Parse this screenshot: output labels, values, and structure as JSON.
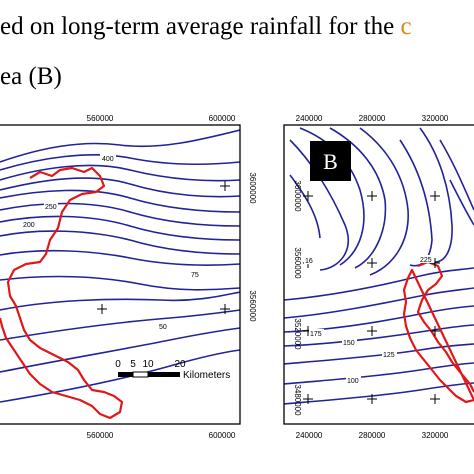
{
  "caption": {
    "line1": "ed on long-term average rainfall for the",
    "line1_cut": "c",
    "line2": "ea (B)"
  },
  "map_a": {
    "top_ticks": [
      "560000",
      "600000"
    ],
    "bottom_ticks": [
      "560000",
      "600000"
    ],
    "right_ticks": [
      "3600000",
      "3560000"
    ],
    "contour_labels": [
      "400",
      "250",
      "200",
      "75",
      "50"
    ],
    "scale": {
      "ticks": [
        "0",
        "5",
        "10",
        "20"
      ],
      "unit": "Kilometers"
    }
  },
  "map_b": {
    "panel_label": "B",
    "top_ticks": [
      "240000",
      "280000",
      "320000"
    ],
    "bottom_ticks": [
      "240000",
      "280000",
      "320000"
    ],
    "left_ticks": [
      "3600000",
      "3560000",
      "3520000",
      "3480000"
    ],
    "contour_labels": [
      "175",
      "150",
      "125",
      "100",
      "225",
      "16"
    ]
  },
  "colors": {
    "contour": "#22229a",
    "boundary": "#e01818",
    "frame": "#000000",
    "label_bg": "#000000"
  }
}
